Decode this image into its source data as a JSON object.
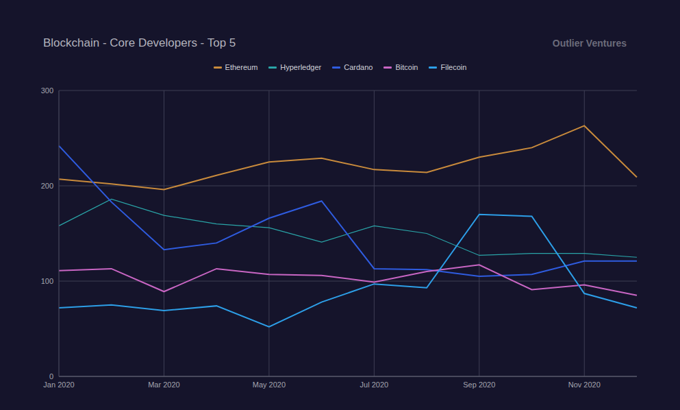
{
  "chart_data": {
    "type": "line",
    "title": "Blockchain - Core Developers - Top 5",
    "annotation": "Outlier Ventures",
    "categories": [
      "Jan 2020",
      null,
      "Mar 2020",
      null,
      "May 2020",
      null,
      "Jul 2020",
      null,
      "Sep 2020",
      null,
      "Nov 2020",
      null
    ],
    "series": [
      {
        "name": "Ethereum",
        "color": "#c98b3c",
        "values": [
          207,
          202,
          196,
          211,
          225,
          229,
          217,
          214,
          230,
          240,
          263,
          209
        ]
      },
      {
        "name": "Hyperledger",
        "color": "#2aa5a8",
        "values": [
          158,
          186,
          169,
          160,
          156,
          141,
          158,
          150,
          127,
          129,
          129,
          125
        ]
      },
      {
        "name": "Cardano",
        "color": "#2f5ce0",
        "values": [
          242,
          183,
          133,
          140,
          166,
          184,
          113,
          112,
          105,
          107,
          121,
          121
        ]
      },
      {
        "name": "Bitcoin",
        "color": "#c966c4",
        "values": [
          111,
          113,
          89,
          113,
          107,
          106,
          99,
          110,
          117,
          91,
          96,
          85
        ]
      },
      {
        "name": "Filecoin",
        "color": "#2d9fe8",
        "values": [
          72,
          75,
          69,
          74,
          52,
          78,
          97,
          93,
          170,
          168,
          87,
          72
        ]
      }
    ],
    "ylim": [
      0,
      300
    ],
    "yticks": [
      0,
      100,
      200,
      300
    ],
    "grid": true,
    "legend": "top"
  }
}
